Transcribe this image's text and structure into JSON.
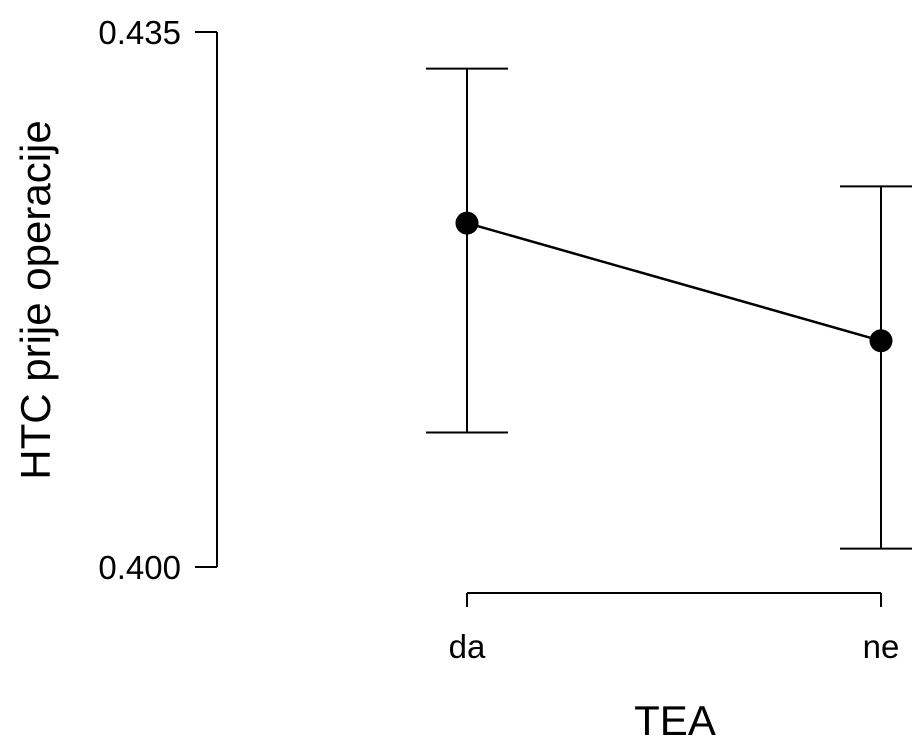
{
  "chart_data": {
    "type": "line",
    "xlabel": "TEA",
    "ylabel": "HTC prije operacije",
    "categories": [
      "da",
      "ne"
    ],
    "y_ticks": [
      0.435,
      0.4
    ],
    "y_tick_labels": [
      "0.435",
      "0.400"
    ],
    "ylim": [
      0.4,
      0.435
    ],
    "series": [
      {
        "values": [
          0.4225,
          0.4148
        ],
        "err_low": [
          0.4088,
          0.4012
        ],
        "err_high": [
          0.4326,
          0.4249
        ]
      }
    ],
    "grid": false,
    "legend": "none"
  }
}
